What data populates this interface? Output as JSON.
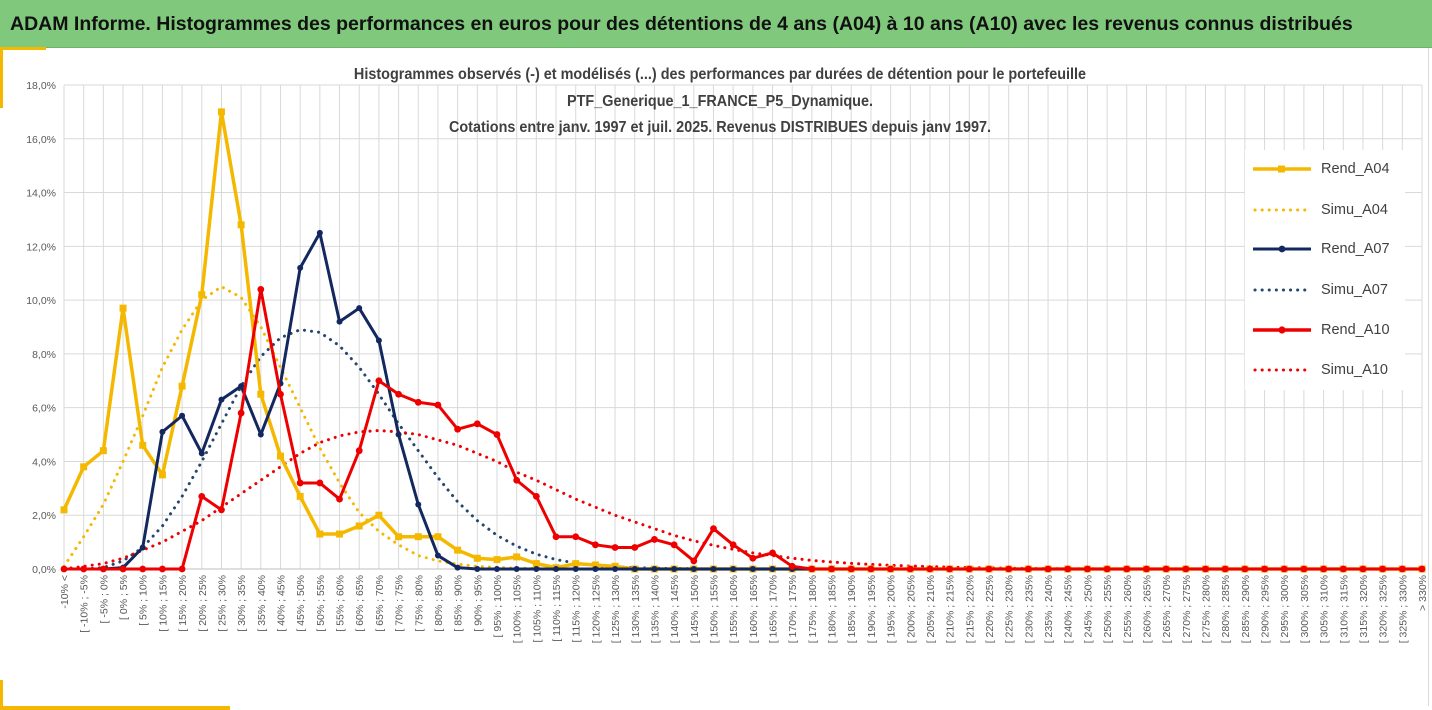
{
  "banner": {
    "title": "ADAM Informe. Histogrammes des performances en euros pour des détentions de 4 ans (A04) à 10 ans (A10) avec les revenus connus distribués"
  },
  "colors": {
    "banner_bg": "#80c97c",
    "accent": "#f5b800",
    "a04": "#f5b800",
    "a07": "#13285e",
    "a10": "#ee0000",
    "simu_a07": "#25466e"
  },
  "chart_data": {
    "type": "line",
    "title_lines": [
      "Histogrammes observés (-) et modélisés (...) des performances par durées de détention pour le portefeuille",
      "PTF_Generique_1_FRANCE_P5_Dynamique.",
      "Cotations entre janv. 1997 et juil. 2025. Revenus DISTRIBUES depuis janv 1997."
    ],
    "xlabel": "",
    "ylabel": "",
    "ylim": [
      0,
      18
    ],
    "yticks": [
      "0,0%",
      "2,0%",
      "4,0%",
      "6,0%",
      "8,0%",
      "10,0%",
      "12,0%",
      "14,0%",
      "16,0%",
      "18,0%"
    ],
    "grid": true,
    "legend_position": "right",
    "categories": [
      "-10% <",
      "[ -10% ; -5%",
      "[ -5% ; 0%",
      "[ 0% ; 5%",
      "[ 5% ; 10%",
      "[ 10% ; 15%",
      "[ 15% ; 20%",
      "[ 20% ; 25%",
      "[ 25% ; 30%",
      "[ 30% ; 35%",
      "[ 35% ; 40%",
      "[ 40% ; 45%",
      "[ 45% ; 50%",
      "[ 50% ; 55%",
      "[ 55% ; 60%",
      "[ 60% ; 65%",
      "[ 65% ; 70%",
      "[ 70% ; 75%",
      "[ 75% ; 80%",
      "[ 80% ; 85%",
      "[ 85% ; 90%",
      "[ 90% ; 95%",
      "[ 95% ; 100%",
      "[ 100% ; 105%",
      "[ 105% ; 110%",
      "[ 110% ; 115%",
      "[ 115% ; 120%",
      "[ 120% ; 125%",
      "[ 125% ; 130%",
      "[ 130% ; 135%",
      "[ 135% ; 140%",
      "[ 140% ; 145%",
      "[ 145% ; 150%",
      "[ 150% ; 155%",
      "[ 155% ; 160%",
      "[ 160% ; 165%",
      "[ 165% ; 170%",
      "[ 170% ; 175%",
      "[ 175% ; 180%",
      "[ 180% ; 185%",
      "[ 185% ; 190%",
      "[ 190% ; 195%",
      "[ 195% ; 200%",
      "[ 200% ; 205%",
      "[ 205% ; 210%",
      "[ 210% ; 215%",
      "[ 215% ; 220%",
      "[ 220% ; 225%",
      "[ 225% ; 230%",
      "[ 230% ; 235%",
      "[ 235% ; 240%",
      "[ 240% ; 245%",
      "[ 245% ; 250%",
      "[ 250% ; 255%",
      "[ 255% ; 260%",
      "[ 260% ; 265%",
      "[ 265% ; 270%",
      "[ 270% ; 275%",
      "[ 275% ; 280%",
      "[ 280% ; 285%",
      "[ 285% ; 290%",
      "[ 290% ; 295%",
      "[ 295% ; 300%",
      "[ 300% ; 305%",
      "[ 305% ; 310%",
      "[ 310% ; 315%",
      "[ 315% ; 320%",
      "[ 320% ; 325%",
      "[ 325% ; 330%",
      "> 330%"
    ],
    "series": [
      {
        "name": "Rend_A04",
        "style": "solid",
        "marker": "square",
        "color": "#f5b800",
        "values": [
          2.2,
          3.8,
          4.4,
          9.7,
          4.6,
          3.5,
          6.8,
          10.2,
          17.0,
          12.8,
          6.5,
          4.2,
          2.7,
          1.3,
          1.3,
          1.6,
          2.0,
          1.2,
          1.2,
          1.2,
          0.7,
          0.4,
          0.35,
          0.45,
          0.2,
          0.05,
          0.2,
          0.15,
          0.1,
          0,
          0,
          0,
          0,
          0,
          0,
          0,
          0,
          0,
          0,
          0,
          0,
          0,
          0,
          0,
          0,
          0,
          0,
          0,
          0,
          0,
          0,
          0,
          0,
          0,
          0,
          0,
          0,
          0,
          0,
          0,
          0,
          0,
          0,
          0,
          0,
          0,
          0,
          0,
          0,
          0
        ]
      },
      {
        "name": "Simu_A04",
        "style": "dotted",
        "color": "#f5b800",
        "values": [
          0.1,
          1.2,
          2.4,
          4.0,
          5.7,
          7.5,
          8.9,
          10.0,
          10.5,
          10.1,
          9.0,
          7.5,
          6.0,
          4.5,
          3.2,
          2.1,
          1.4,
          0.9,
          0.5,
          0.3,
          0.18,
          0.1,
          0.06,
          0.03,
          0.02,
          0.01,
          0,
          0,
          0,
          0,
          0,
          0,
          0,
          0,
          0,
          0,
          0,
          0,
          0,
          0,
          0,
          0,
          0,
          0,
          0,
          0,
          0,
          0,
          0,
          0,
          0,
          0,
          0,
          0,
          0,
          0,
          0,
          0,
          0,
          0,
          0,
          0,
          0,
          0,
          0,
          0,
          0,
          0,
          0,
          0
        ]
      },
      {
        "name": "Rend_A07",
        "style": "solid",
        "marker": "circle",
        "color": "#13285e",
        "values": [
          0,
          0,
          0,
          0.05,
          0.8,
          5.1,
          5.7,
          4.3,
          6.3,
          6.8,
          5.0,
          6.9,
          11.2,
          12.5,
          9.2,
          9.7,
          8.5,
          5.0,
          2.4,
          0.5,
          0.05,
          0,
          0,
          0,
          0,
          0,
          0,
          0,
          0,
          0,
          0,
          0,
          0,
          0,
          0,
          0,
          0,
          0,
          0,
          0,
          0,
          0,
          0,
          0,
          0,
          0,
          0,
          0,
          0,
          0,
          0,
          0,
          0,
          0,
          0,
          0,
          0,
          0,
          0,
          0,
          0,
          0,
          0,
          0,
          0,
          0,
          0,
          0,
          0,
          0
        ]
      },
      {
        "name": "Simu_A07",
        "style": "dotted",
        "color": "#25466e",
        "values": [
          0,
          0,
          0.05,
          0.3,
          0.8,
          1.6,
          2.7,
          4.0,
          5.4,
          6.8,
          7.9,
          8.6,
          8.9,
          8.8,
          8.3,
          7.5,
          6.5,
          5.4,
          4.4,
          3.4,
          2.5,
          1.8,
          1.25,
          0.85,
          0.55,
          0.35,
          0.22,
          0.13,
          0.08,
          0.05,
          0.03,
          0.02,
          0.01,
          0,
          0,
          0,
          0,
          0,
          0,
          0,
          0,
          0,
          0,
          0,
          0,
          0,
          0,
          0,
          0,
          0,
          0,
          0,
          0,
          0,
          0,
          0,
          0,
          0,
          0,
          0,
          0,
          0,
          0,
          0,
          0,
          0,
          0,
          0,
          0,
          0
        ]
      },
      {
        "name": "Rend_A10",
        "style": "solid",
        "marker": "circle",
        "color": "#ee0000",
        "values": [
          0,
          0,
          0,
          0,
          0,
          0,
          0,
          2.7,
          2.2,
          5.8,
          10.4,
          6.5,
          3.2,
          3.2,
          2.6,
          4.4,
          7.0,
          6.5,
          6.2,
          6.1,
          5.2,
          5.4,
          5.0,
          3.3,
          2.7,
          1.2,
          1.2,
          0.9,
          0.8,
          0.8,
          1.1,
          0.9,
          0.3,
          1.5,
          0.9,
          0.4,
          0.6,
          0.1,
          0,
          0,
          0,
          0,
          0,
          0,
          0,
          0,
          0,
          0,
          0,
          0,
          0,
          0,
          0,
          0,
          0,
          0,
          0,
          0,
          0,
          0,
          0,
          0,
          0,
          0,
          0,
          0,
          0,
          0,
          0,
          0
        ]
      },
      {
        "name": "Simu_A10",
        "style": "dotted",
        "color": "#ee0000",
        "values": [
          0,
          0.1,
          0.2,
          0.4,
          0.7,
          1.0,
          1.4,
          1.8,
          2.3,
          2.8,
          3.3,
          3.8,
          4.3,
          4.7,
          4.95,
          5.1,
          5.15,
          5.1,
          5.0,
          4.8,
          4.6,
          4.3,
          4.0,
          3.6,
          3.3,
          2.95,
          2.6,
          2.3,
          2.0,
          1.75,
          1.5,
          1.25,
          1.05,
          0.88,
          0.73,
          0.6,
          0.5,
          0.4,
          0.32,
          0.26,
          0.21,
          0.17,
          0.14,
          0.11,
          0.09,
          0.07,
          0.05,
          0.04,
          0.03,
          0.02,
          0.02,
          0.01,
          0.01,
          0,
          0,
          0,
          0,
          0,
          0,
          0,
          0,
          0,
          0,
          0,
          0,
          0,
          0,
          0,
          0,
          0
        ]
      }
    ]
  }
}
